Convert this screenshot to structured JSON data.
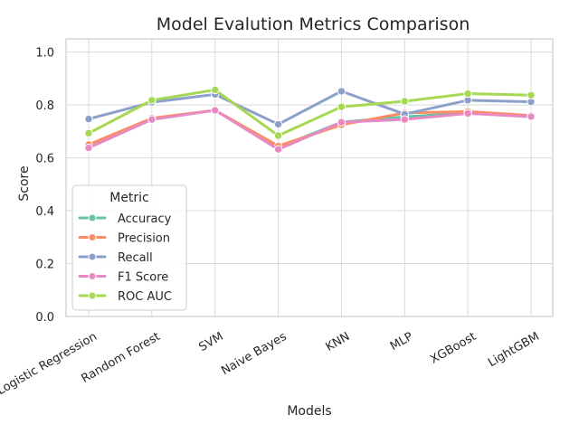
{
  "chart_data": {
    "type": "line",
    "title": "Model Evalution Metrics Comparison",
    "xlabel": "Models",
    "ylabel": "Score",
    "ylim": [
      0,
      1.05
    ],
    "yticks": [
      "0.0",
      "0.2",
      "0.4",
      "0.6",
      "0.8",
      "1.0"
    ],
    "categories": [
      "Logistic Regression",
      "Random Forest",
      "SVM",
      "Naive Bayes",
      "KNN",
      "MLP",
      "XGBoost",
      "LightGBM"
    ],
    "grid": true,
    "legend": {
      "title": "Metric",
      "placement": "lower-left"
    },
    "series": [
      {
        "name": "Accuracy",
        "color": "#66c2a5",
        "values": [
          0.645,
          0.745,
          0.78,
          0.64,
          0.735,
          0.755,
          0.77,
          0.755
        ]
      },
      {
        "name": "Precision",
        "color": "#fc8d62",
        "values": [
          0.65,
          0.75,
          0.78,
          0.645,
          0.725,
          0.77,
          0.775,
          0.76
        ]
      },
      {
        "name": "Recall",
        "color": "#8da0cb",
        "values": [
          0.747,
          0.81,
          0.84,
          0.727,
          0.852,
          0.765,
          0.818,
          0.812
        ]
      },
      {
        "name": "F1 Score",
        "color": "#e78ac3",
        "values": [
          0.638,
          0.745,
          0.78,
          0.632,
          0.735,
          0.745,
          0.768,
          0.756
        ]
      },
      {
        "name": "ROC AUC",
        "color": "#a6d854",
        "values": [
          0.693,
          0.818,
          0.857,
          0.684,
          0.793,
          0.814,
          0.843,
          0.837
        ]
      }
    ]
  }
}
